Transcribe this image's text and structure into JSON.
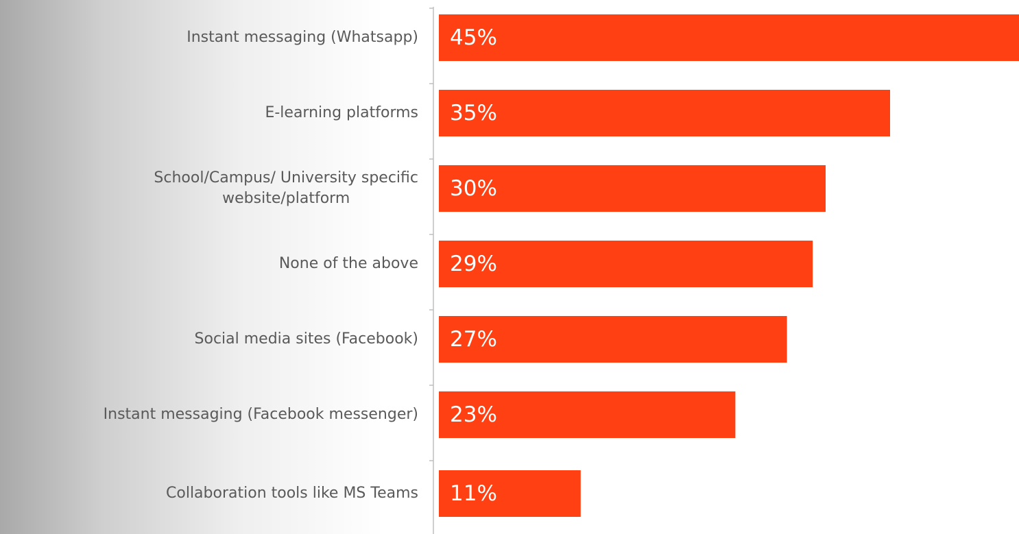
{
  "chart_data": {
    "type": "bar",
    "orientation": "horizontal",
    "categories": [
      "Instant messaging (Whatsapp)",
      "E-learning platforms",
      "School/Campus/ University specific\nwebsite/platform",
      "None of the above",
      "Social media sites (Facebook)",
      "Instant messaging (Facebook messenger)",
      "Collaboration tools like MS Teams"
    ],
    "values": [
      45,
      35,
      30,
      29,
      27,
      23,
      11
    ],
    "value_labels": [
      "45%",
      "35%",
      "30%",
      "29%",
      "27%",
      "23%",
      "11%"
    ],
    "color": "#ff4013",
    "xlim": [
      0,
      45
    ]
  }
}
